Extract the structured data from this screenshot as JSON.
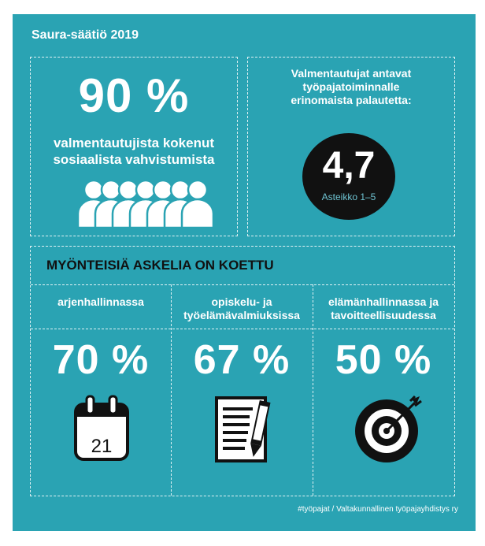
{
  "header": {
    "title": "Saura-säätiö 2019"
  },
  "social": {
    "percent": "90 %",
    "line1": "valmentautujista kokenut",
    "line2": "sosiaalista vahvistumista"
  },
  "feedback": {
    "line1": "Valmentautujat antavat",
    "line2": "työpajatoiminnalle",
    "line3": "erinomaista palautetta:",
    "score": "4,7",
    "scale": "Asteikko 1–5"
  },
  "steps": {
    "heading": "MYÖNTEISIÄ ASKELIA ON KOETTU",
    "items": [
      {
        "label1": "arjenhallinnassa",
        "label2": "",
        "percent": "70 %",
        "icon": "calendar-icon",
        "icon_text": "21"
      },
      {
        "label1": "opiskelu- ja",
        "label2": "työelämävalmiuksissa",
        "percent": "67 %",
        "icon": "notepad-pencil-icon"
      },
      {
        "label1": "elämänhallinnassa ja",
        "label2": "tavoitteellisuudessa",
        "percent": "50 %",
        "icon": "target-icon"
      }
    ]
  },
  "footer": {
    "text": "#työpajat  /  Valtakunnallinen työpajayhdistys ry"
  },
  "colors": {
    "background": "#2aa3b3",
    "text": "#ffffff",
    "dark": "#111111"
  }
}
